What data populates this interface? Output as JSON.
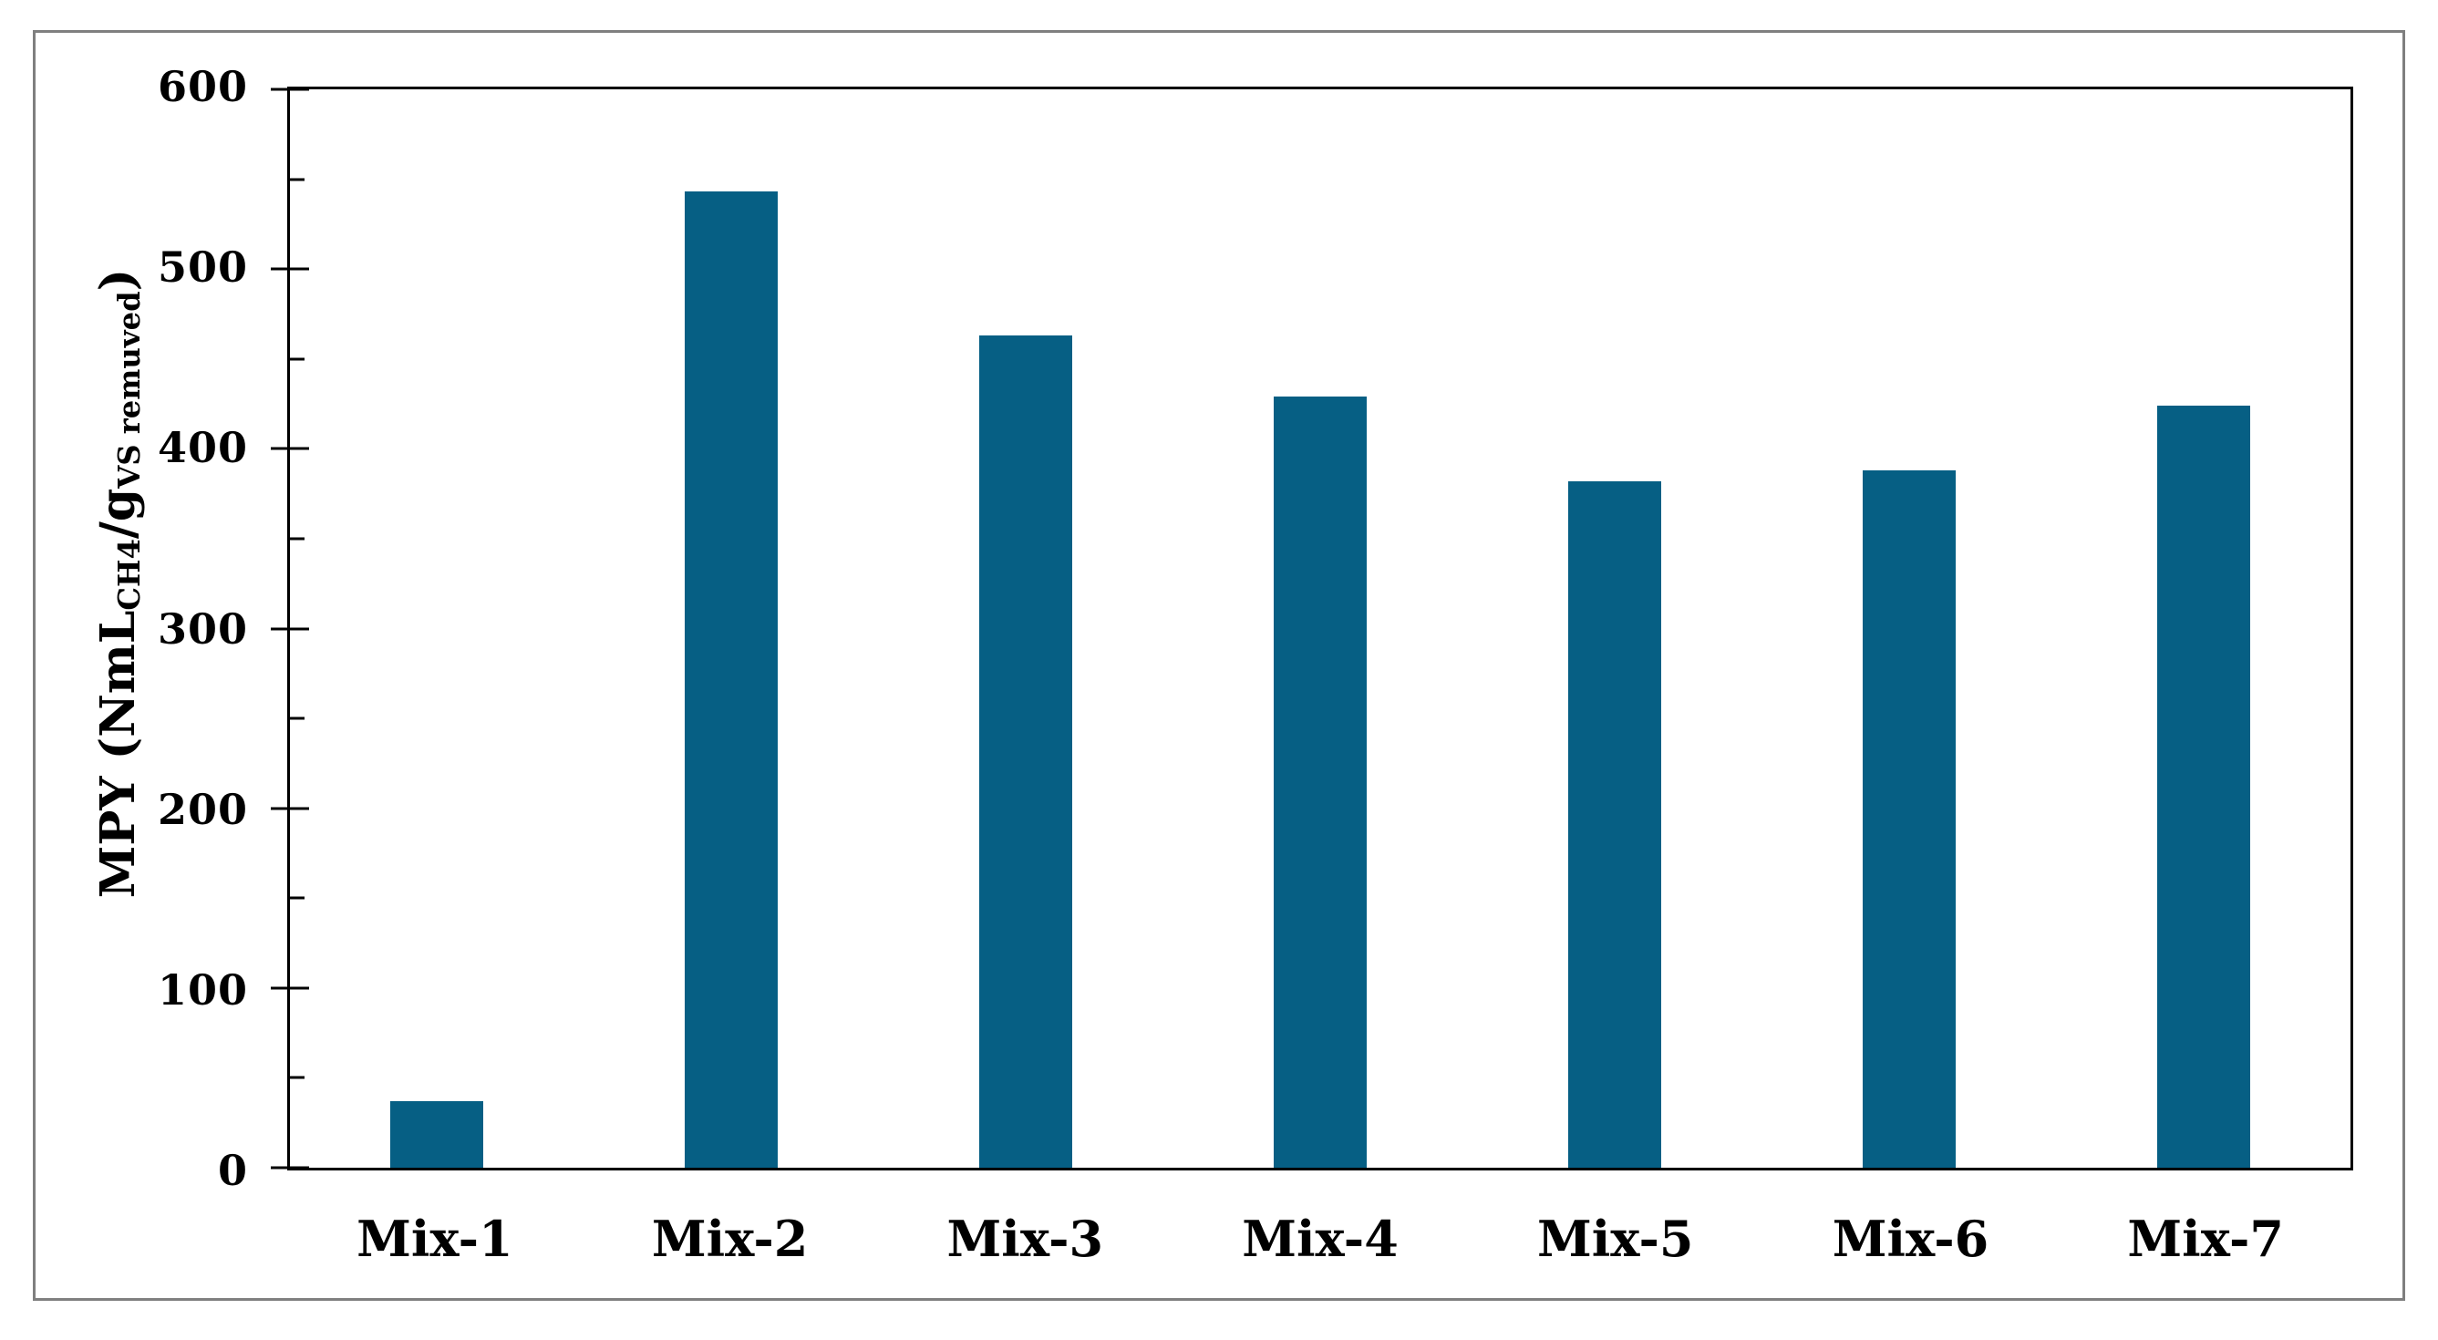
{
  "chart_data": {
    "type": "bar",
    "title": "",
    "categories": [
      "Mix-1",
      "Mix-2",
      "Mix-3",
      "Mix-4",
      "Mix-5",
      "Mix-6",
      "Mix-7"
    ],
    "values": [
      37,
      543,
      463,
      429,
      382,
      388,
      424
    ],
    "xlabel": "",
    "ylabel": "MPY (NmL_CH4 / g_VS remuved)",
    "ylabel_parts": {
      "prefix": "MPY (NmL",
      "sub1": "CH4",
      "mid": "/g",
      "sub2": "VS remuved",
      "suffix": ")"
    },
    "ylim": [
      0,
      600
    ],
    "yticks": [
      0,
      100,
      200,
      300,
      400,
      500,
      600
    ],
    "yticks_minor": [
      50,
      150,
      250,
      350,
      450,
      550
    ],
    "grid": false,
    "legend": "none",
    "colors": {
      "bar": "#065F84",
      "axis": "#000000",
      "frame_border": "#7F7F7F",
      "background": "#FFFFFF",
      "text": "#000000"
    }
  }
}
